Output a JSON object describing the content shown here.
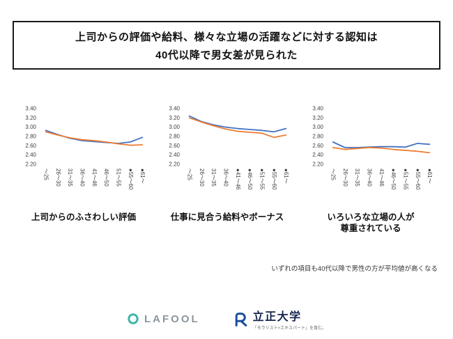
{
  "header": {
    "title_line1": "上司からの評価や給料、様々な立場の活躍などに対する認知は",
    "title_line2": "40代以降で男女差が見られた"
  },
  "colors": {
    "series_blue": "#4472C4",
    "series_orange": "#ED7D31"
  },
  "chart_data": [
    {
      "type": "line",
      "title": "上司からのふさわしい評価",
      "categories": [
        "～25",
        "26～30",
        "31～35",
        "36～40",
        "41～46",
        "46～50",
        "51～55",
        "●55～60",
        "●61～"
      ],
      "series": [
        {
          "name": "blue",
          "color": "#4472C4",
          "values": [
            2.93,
            2.84,
            2.76,
            2.71,
            2.69,
            2.67,
            2.65,
            2.68,
            2.78
          ]
        },
        {
          "name": "orange",
          "color": "#ED7D31",
          "values": [
            2.9,
            2.83,
            2.77,
            2.73,
            2.71,
            2.68,
            2.64,
            2.61,
            2.62
          ]
        }
      ],
      "ylim": [
        2.2,
        3.4
      ],
      "yticks": [
        "3.40",
        "3.20",
        "3.00",
        "2.80",
        "2.60",
        "2.40",
        "2.20"
      ],
      "xlabel": "",
      "ylabel": "",
      "grid": false,
      "legend": "none"
    },
    {
      "type": "line",
      "title": "仕事に見合う給料やボーナス",
      "categories": [
        "～25",
        "26～30",
        "31～35",
        "36～40",
        "●41～46",
        "●46～50",
        "●51～55",
        "●55～60",
        "●61～"
      ],
      "series": [
        {
          "name": "blue",
          "color": "#4472C4",
          "values": [
            3.24,
            3.12,
            3.05,
            3.0,
            2.97,
            2.95,
            2.93,
            2.9,
            2.97
          ]
        },
        {
          "name": "orange",
          "color": "#ED7D31",
          "values": [
            3.2,
            3.11,
            3.03,
            2.96,
            2.91,
            2.89,
            2.87,
            2.78,
            2.83
          ]
        }
      ],
      "ylim": [
        2.2,
        3.4
      ],
      "yticks": [
        "3.40",
        "3.20",
        "3.00",
        "2.80",
        "2.60",
        "2.40",
        "2.20"
      ],
      "xlabel": "",
      "ylabel": "",
      "grid": false,
      "legend": "none"
    },
    {
      "type": "line",
      "title": "いろいろな立場の人が\n尊重されている",
      "categories": [
        "～25",
        "26～30",
        "31～35",
        "36～40",
        "41～46",
        "●46～50",
        "●51～55",
        "●55～60",
        "●61～"
      ],
      "series": [
        {
          "name": "blue",
          "color": "#4472C4",
          "values": [
            2.68,
            2.56,
            2.56,
            2.57,
            2.58,
            2.58,
            2.57,
            2.65,
            2.63
          ]
        },
        {
          "name": "orange",
          "color": "#ED7D31",
          "values": [
            2.56,
            2.52,
            2.54,
            2.56,
            2.55,
            2.52,
            2.5,
            2.48,
            2.45
          ]
        }
      ],
      "ylim": [
        2.2,
        3.4
      ],
      "yticks": [
        "3.40",
        "3.20",
        "3.00",
        "2.80",
        "2.60",
        "2.40",
        "2.20"
      ],
      "xlabel": "",
      "ylabel": "",
      "grid": false,
      "legend": "none"
    }
  ],
  "note": "いずれの項目も40代以降で男性の方が平均値が高くなる",
  "footer": {
    "lafool_label": "LAFOOL",
    "univ_label": "立正大学",
    "univ_tagline": "「モラリスト×エキスパート」を育む。"
  }
}
